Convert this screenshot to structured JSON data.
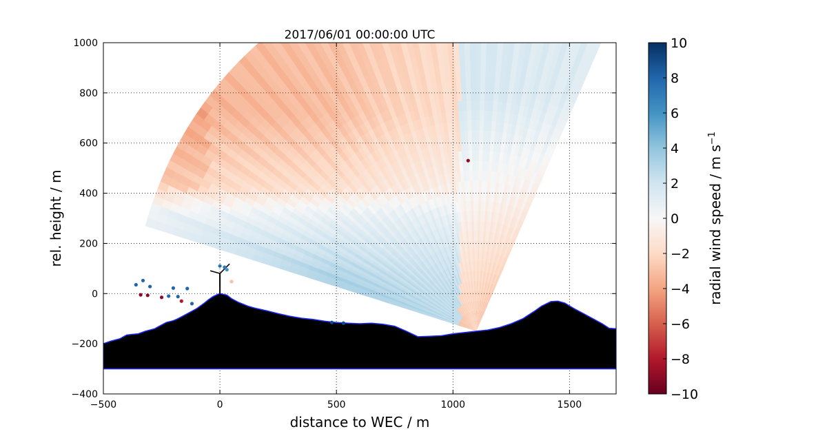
{
  "chart_data": {
    "type": "heatmap",
    "title": "2017/06/01 00:00:00 UTC",
    "xlabel": "distance to WEC / m",
    "ylabel": "rel. height / m",
    "xlim": [
      -500,
      1700
    ],
    "ylim": [
      -400,
      1000
    ],
    "xticks": [
      -500,
      0,
      500,
      1000,
      1500
    ],
    "xtick_labels": [
      "−500",
      "0",
      "500",
      "1000",
      "1500"
    ],
    "yticks": [
      -400,
      -200,
      0,
      200,
      400,
      600,
      800,
      1000
    ],
    "ytick_labels": [
      "−400",
      "−200",
      "0",
      "200",
      "400",
      "600",
      "800",
      "1000"
    ],
    "grid": true,
    "colorbar": {
      "label": "radial wind speed / m s",
      "label_superscript": "−1",
      "range": [
        -10,
        10
      ],
      "ticks": [
        10,
        8,
        6,
        4,
        2,
        0,
        -2,
        -4,
        -6,
        -8,
        -10
      ],
      "tick_labels": [
        "10",
        "8",
        "6",
        "4",
        "2",
        "0",
        "−2",
        "−4",
        "−6",
        "−8",
        "−10"
      ],
      "colormap": "RdBu"
    },
    "scan": {
      "origin_x": 1100,
      "origin_y": -150,
      "range_max_m": 1460,
      "start_azimuth_deg": 65,
      "end_azimuth_deg": 163,
      "field_description_samples": [
        {
          "region": "near ground, x<1000",
          "speed": 3
        },
        {
          "region": "z 400-900, x<1000",
          "speed": -2.5
        },
        {
          "region": "x>1000, low",
          "speed": -3
        },
        {
          "region": "x>1000, high",
          "speed": 1.5
        }
      ]
    },
    "terrain": {
      "floor_y": -300,
      "profile": [
        [
          -500,
          -200
        ],
        [
          -470,
          -190
        ],
        [
          -430,
          -180
        ],
        [
          -400,
          -165
        ],
        [
          -350,
          -160
        ],
        [
          -320,
          -150
        ],
        [
          -280,
          -140
        ],
        [
          -250,
          -125
        ],
        [
          -230,
          -115
        ],
        [
          -200,
          -108
        ],
        [
          -180,
          -100
        ],
        [
          -150,
          -85
        ],
        [
          -120,
          -70
        ],
        [
          -100,
          -60
        ],
        [
          -70,
          -40
        ],
        [
          -50,
          -25
        ],
        [
          -30,
          -12
        ],
        [
          -10,
          -3
        ],
        [
          0,
          0
        ],
        [
          10,
          -2
        ],
        [
          30,
          -6
        ],
        [
          50,
          -20
        ],
        [
          80,
          -35
        ],
        [
          120,
          -50
        ],
        [
          150,
          -58
        ],
        [
          200,
          -68
        ],
        [
          250,
          -80
        ],
        [
          300,
          -90
        ],
        [
          350,
          -98
        ],
        [
          400,
          -103
        ],
        [
          450,
          -110
        ],
        [
          500,
          -115
        ],
        [
          550,
          -118
        ],
        [
          600,
          -120
        ],
        [
          650,
          -118
        ],
        [
          700,
          -122
        ],
        [
          750,
          -130
        ],
        [
          800,
          -150
        ],
        [
          850,
          -172
        ],
        [
          900,
          -170
        ],
        [
          950,
          -168
        ],
        [
          1000,
          -160
        ],
        [
          1050,
          -155
        ],
        [
          1100,
          -150
        ],
        [
          1150,
          -145
        ],
        [
          1200,
          -135
        ],
        [
          1250,
          -120
        ],
        [
          1300,
          -100
        ],
        [
          1350,
          -70
        ],
        [
          1380,
          -50
        ],
        [
          1420,
          -32
        ],
        [
          1450,
          -30
        ],
        [
          1480,
          -38
        ],
        [
          1520,
          -60
        ],
        [
          1560,
          -80
        ],
        [
          1600,
          -100
        ],
        [
          1640,
          -120
        ],
        [
          1670,
          -138
        ],
        [
          1700,
          -140
        ]
      ]
    },
    "turbine": {
      "x": 0,
      "hub_height": 80
    },
    "colors": {
      "negative_max": "#67001f",
      "neutral": "#f7f7f7",
      "positive_max": "#053061",
      "terrain": "#000000",
      "terrain_edge": "#1e2cff"
    }
  }
}
